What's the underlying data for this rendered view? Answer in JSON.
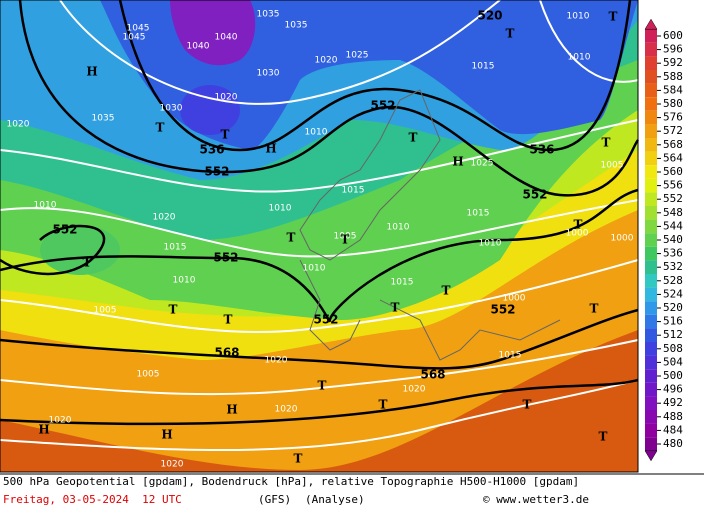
{
  "map": {
    "geopotential_labels": [
      "552",
      "552",
      "552",
      "552",
      "552",
      "552",
      "552",
      "536",
      "536",
      "568",
      "568",
      "520"
    ],
    "pressure_labels": [
      "1035",
      "1035",
      "1035",
      "1045",
      "1045",
      "1040",
      "1040",
      "1030",
      "1030",
      "1020",
      "1020",
      "1020",
      "1020",
      "1020",
      "1020",
      "1020",
      "1020",
      "1020",
      "1025",
      "1025",
      "1010",
      "1010",
      "1010",
      "1010",
      "1010",
      "1010",
      "1010",
      "1010",
      "1010",
      "1015",
      "1015",
      "1015",
      "1015",
      "1015",
      "1015",
      "1005",
      "1005",
      "1005",
      "1005",
      "1000",
      "1000",
      "1000"
    ],
    "centers": [
      "T",
      "T",
      "T",
      "T",
      "T",
      "T",
      "T",
      "T",
      "T",
      "T",
      "T",
      "T",
      "T",
      "T",
      "T",
      "T",
      "T",
      "T",
      "T",
      "T",
      "H",
      "H",
      "H",
      "H",
      "H",
      "H"
    ]
  },
  "legend": {
    "values": [
      600,
      596,
      592,
      588,
      584,
      580,
      576,
      572,
      568,
      564,
      560,
      556,
      552,
      548,
      544,
      540,
      536,
      532,
      528,
      524,
      520,
      516,
      512,
      508,
      504,
      500,
      496,
      492,
      488,
      484,
      480
    ],
    "colors": [
      "#d0205a",
      "#d83048",
      "#e04030",
      "#e05020",
      "#e86018",
      "#f07010",
      "#f08810",
      "#f0a010",
      "#f0b810",
      "#f0d010",
      "#f0e810",
      "#e0f010",
      "#c0e820",
      "#a0e030",
      "#80d840",
      "#60d050",
      "#40c860",
      "#30c090",
      "#30c8c0",
      "#30b8e0",
      "#3098e8",
      "#3078e8",
      "#3058e0",
      "#4040e0",
      "#5030d8",
      "#6020d0",
      "#7018c8",
      "#8010c0",
      "#8808b0",
      "#9000a0",
      "#800090"
    ]
  },
  "footer": {
    "description": "500 hPa Geopotential [gpdam], Bodendruck [hPa], relative Topographie H500-H1000 [gpdam]",
    "date": "Freitag, 03-05-2024  12 UTC",
    "model": "(GFS)",
    "run": "(Analyse)",
    "copyright": "© www.wetter3.de"
  }
}
